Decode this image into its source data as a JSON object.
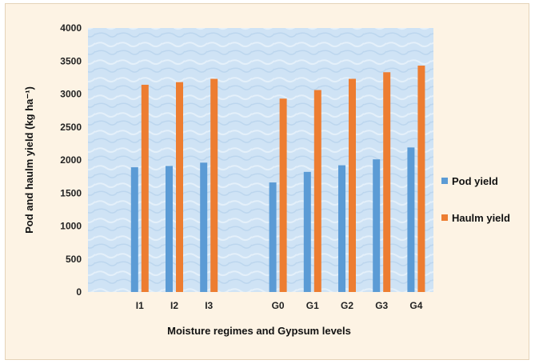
{
  "chart_data": {
    "type": "bar",
    "title": "",
    "xlabel": "Moisture regimes and Gypsum levels",
    "ylabel": "Pod and haulm yield (kg ha⁻¹)",
    "ylim": [
      0,
      4000
    ],
    "yticks": [
      "0",
      "500",
      "1000",
      "1500",
      "2000",
      "2500",
      "3000",
      "3500",
      "4000"
    ],
    "categories": [
      "",
      "I1",
      "I2",
      "I3",
      "",
      "G0",
      "G1",
      "G2",
      "G3",
      "G4"
    ],
    "series": [
      {
        "name": "Pod yield",
        "color": "#5b9bd5",
        "values": [
          null,
          1890,
          1910,
          1960,
          null,
          1660,
          1820,
          1920,
          2010,
          2190
        ]
      },
      {
        "name": "Haulm yield",
        "color": "#ed7d31",
        "values": [
          null,
          3140,
          3180,
          3230,
          null,
          2930,
          3060,
          3230,
          3330,
          3430
        ]
      }
    ],
    "grid": false,
    "legend_position": "right"
  }
}
